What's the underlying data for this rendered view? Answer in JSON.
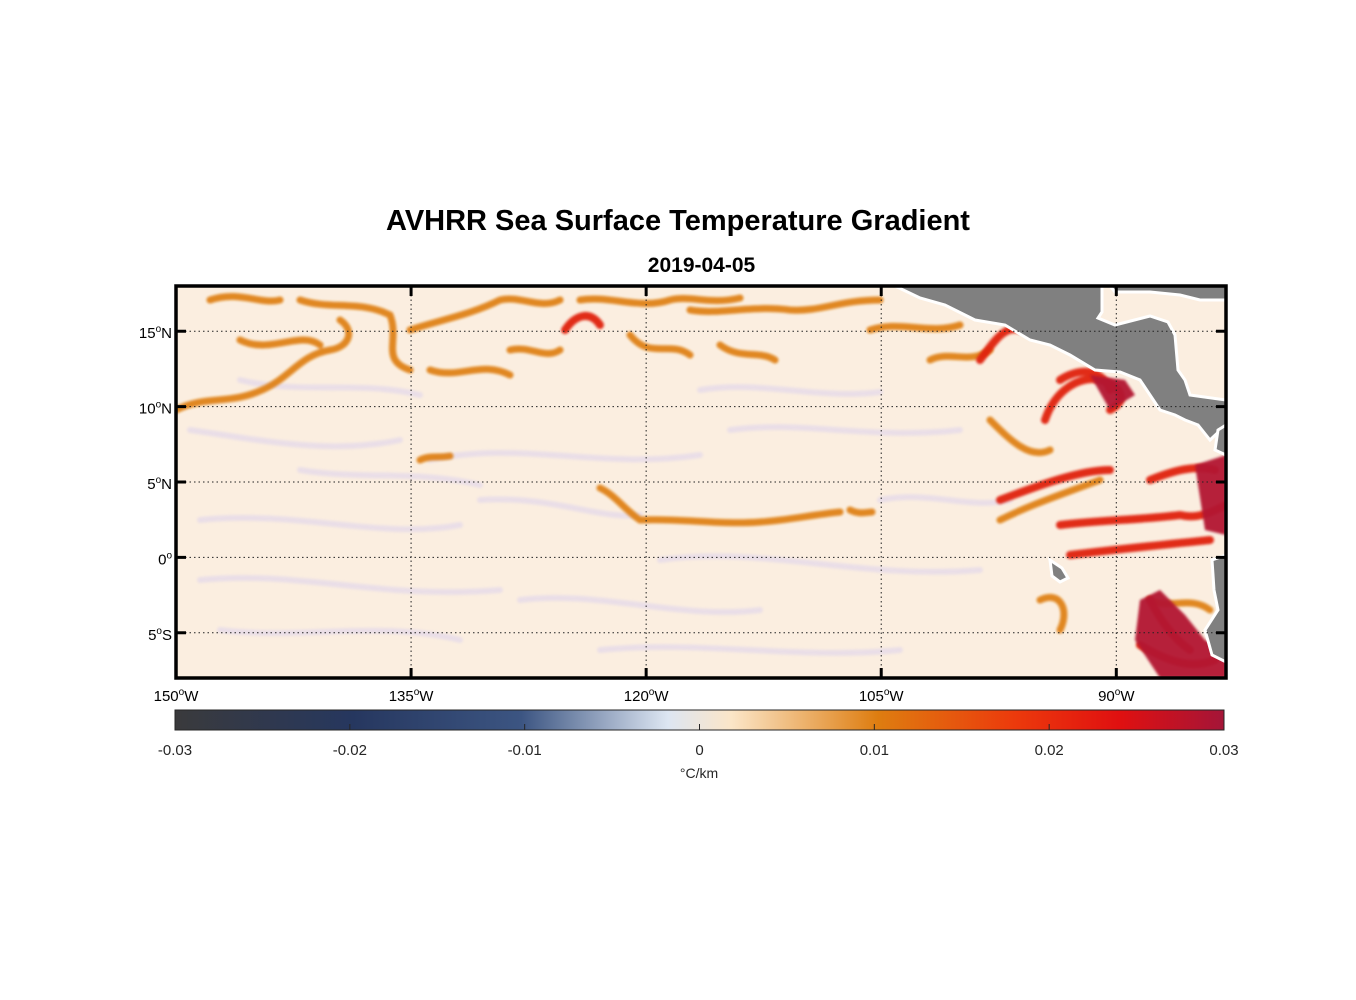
{
  "title": "AVHRR Sea Surface Temperature Gradient",
  "subtitle": "2019-04-05",
  "map": {
    "lon_range": [
      -150,
      -83
    ],
    "lat_range": [
      -8,
      18
    ],
    "lon_ticks": [
      {
        "value": -150,
        "deg": "150",
        "hemi": "W"
      },
      {
        "value": -135,
        "deg": "135",
        "hemi": "W"
      },
      {
        "value": -120,
        "deg": "120",
        "hemi": "W"
      },
      {
        "value": -105,
        "deg": "105",
        "hemi": "W"
      },
      {
        "value": -90,
        "deg": "90",
        "hemi": "W"
      }
    ],
    "lat_ticks": [
      {
        "value": 15,
        "deg": "15",
        "hemi": "N"
      },
      {
        "value": 10,
        "deg": "10",
        "hemi": "N"
      },
      {
        "value": 5,
        "deg": "5",
        "hemi": "N"
      },
      {
        "value": 0,
        "deg": "0",
        "hemi": ""
      },
      {
        "value": -5,
        "deg": "5",
        "hemi": "S"
      }
    ],
    "grid": "dotted",
    "land_color": "#808080",
    "ocean_base_color": "#fbeee0"
  },
  "colorbar": {
    "min": -0.03,
    "max": 0.03,
    "tick_labels": [
      "-0.03",
      "-0.02",
      "-0.01",
      "0",
      "0.01",
      "0.02",
      "0.03"
    ],
    "tick_values": [
      -0.03,
      -0.02,
      -0.01,
      0,
      0.01,
      0.02,
      0.03
    ],
    "unit_label": "°C/km",
    "colors": [
      "#3a3a3c",
      "#26375f",
      "#3c5582",
      "#e4e9f0",
      "#fbe6c8",
      "#de7d10",
      "#ec3a0c",
      "#e01010",
      "#a41538"
    ]
  }
}
